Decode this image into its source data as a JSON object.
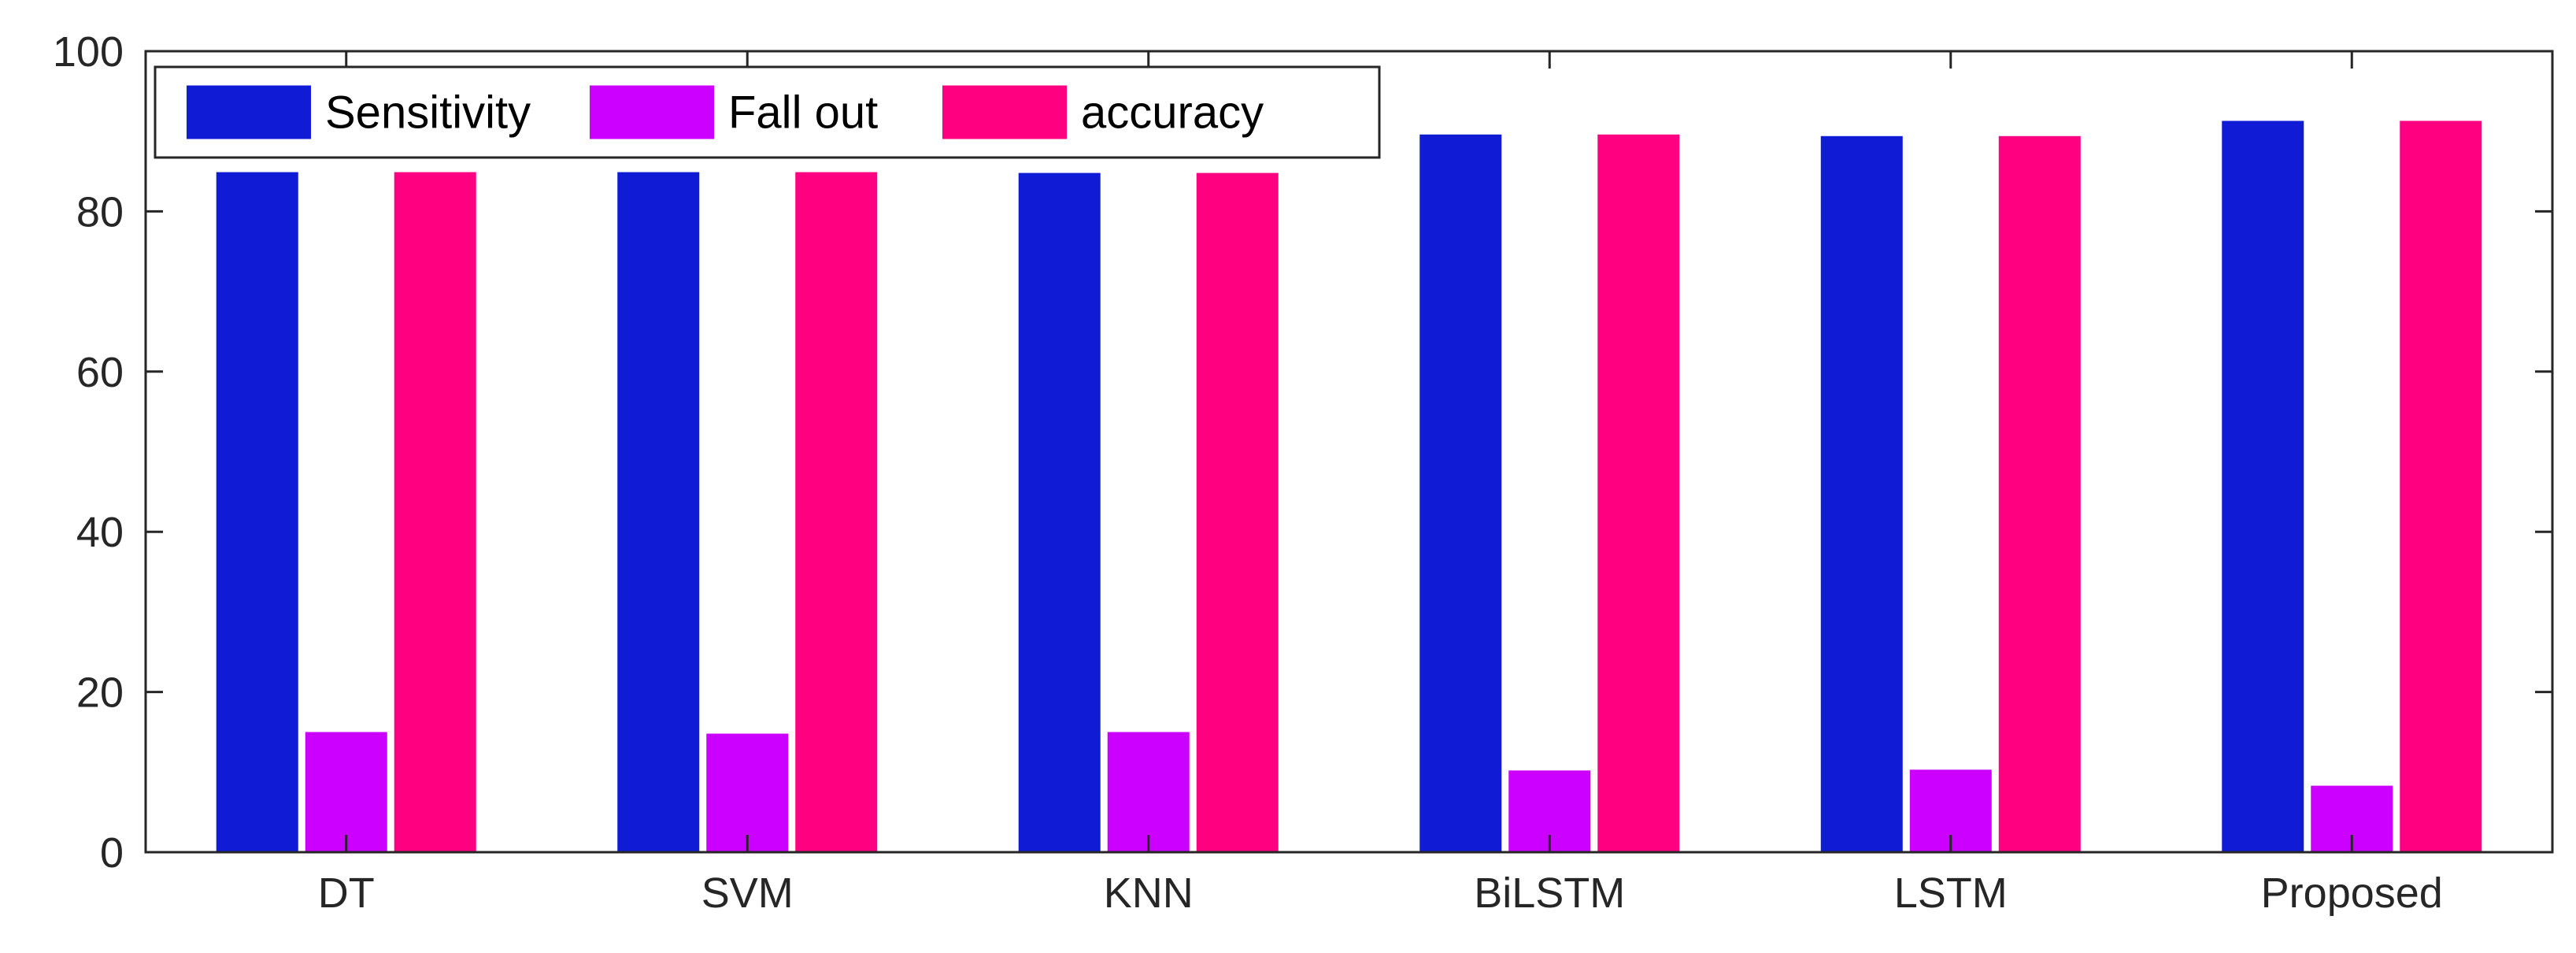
{
  "chart_data": {
    "type": "bar",
    "title": "",
    "xlabel": "",
    "ylabel": "",
    "categories": [
      "DT",
      "SVM",
      "KNN",
      "BiLSTM",
      "LSTM",
      "Proposed"
    ],
    "series": [
      {
        "name": "Sensitivity",
        "color": "#0f1bd4",
        "values": [
          84.9,
          84.9,
          84.8,
          89.6,
          89.4,
          91.3
        ]
      },
      {
        "name": "Fall out",
        "color": "#cc00ff",
        "values": [
          15.0,
          14.8,
          15.0,
          10.2,
          10.3,
          8.3
        ]
      },
      {
        "name": "accuracy",
        "color": "#ff0080",
        "values": [
          84.9,
          84.9,
          84.8,
          89.6,
          89.4,
          91.3
        ]
      }
    ],
    "ylim": [
      0,
      100
    ],
    "yticks": [
      0,
      20,
      40,
      60,
      80,
      100
    ],
    "grid": false,
    "legend": {
      "placement": "top-left",
      "orientation": "horizontal"
    }
  }
}
